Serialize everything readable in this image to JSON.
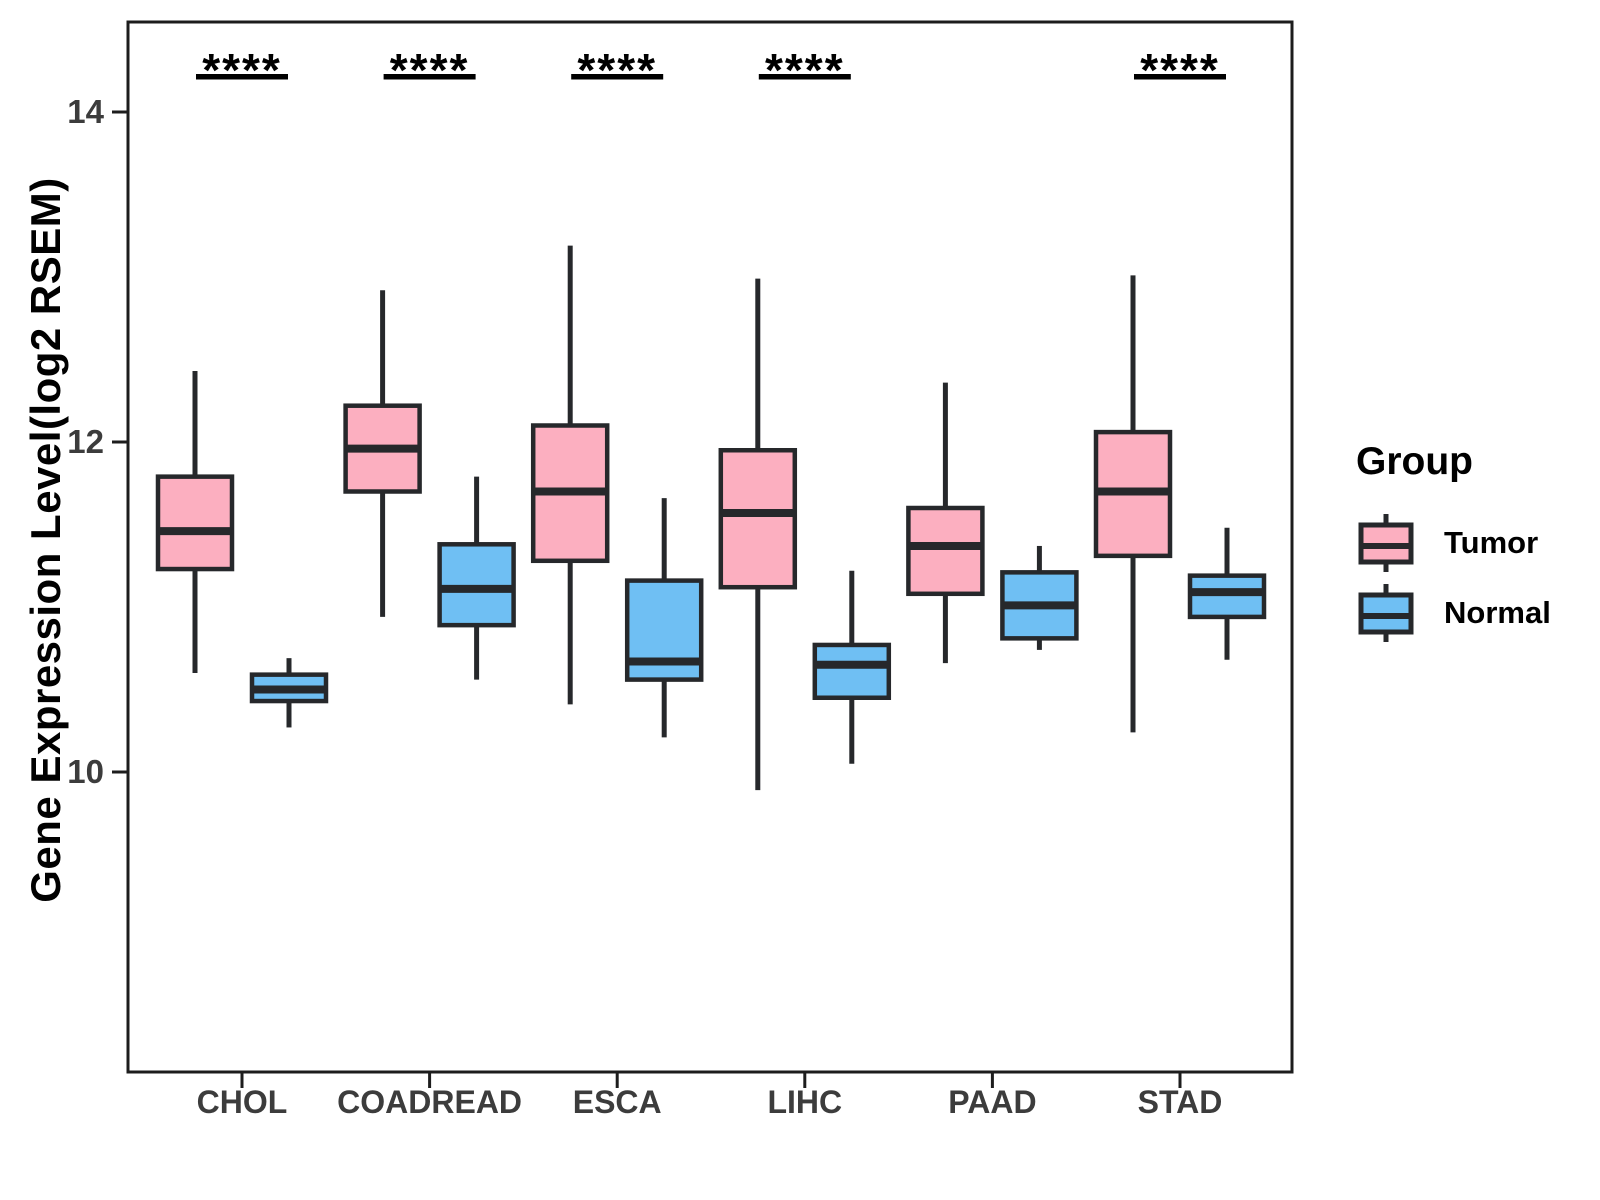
{
  "figure": {
    "y_axis_title": "Gene Expression Level(log2 RSEM)",
    "legend": {
      "title": "Group",
      "items": [
        {
          "label": "Tumor",
          "color": "#FCAFC0"
        },
        {
          "label": "Normal",
          "color": "#6FBFF3"
        }
      ]
    }
  },
  "chart_data": {
    "type": "boxplot",
    "title": "",
    "xlabel": "",
    "ylabel": "Gene Expression Level(log2 RSEM)",
    "categories": [
      "CHOL",
      "COADREAD",
      "ESCA",
      "LIHC",
      "PAAD",
      "STAD"
    ],
    "groups": [
      "Tumor",
      "Normal"
    ],
    "y_ticks": [
      14,
      12,
      10
    ],
    "ylim": [
      8.2,
      14.6
    ],
    "grid": false,
    "legend_position": "right",
    "colors": {
      "Tumor": "#FCAFC0",
      "Normal": "#6FBFF3"
    },
    "box_border_color": "#26282B",
    "significance_marker": "****",
    "significance": [
      {
        "category": "CHOL",
        "label": "****"
      },
      {
        "category": "COADREAD",
        "label": "****"
      },
      {
        "category": "ESCA",
        "label": "****"
      },
      {
        "category": "LIHC",
        "label": "****"
      },
      {
        "category": "STAD",
        "label": "****"
      }
    ],
    "series": [
      {
        "name": "Tumor",
        "color": "#FCAFC0",
        "boxes": [
          {
            "category": "CHOL",
            "whisker_low": 10.6,
            "q1": 11.23,
            "median": 11.46,
            "q3": 11.79,
            "whisker_high": 12.43
          },
          {
            "category": "COADREAD",
            "whisker_low": 10.94,
            "q1": 11.7,
            "median": 11.96,
            "q3": 12.22,
            "whisker_high": 12.92
          },
          {
            "category": "ESCA",
            "whisker_low": 10.41,
            "q1": 11.28,
            "median": 11.7,
            "q3": 12.1,
            "whisker_high": 13.19
          },
          {
            "category": "LIHC",
            "whisker_low": 9.89,
            "q1": 11.12,
            "median": 11.57,
            "q3": 11.95,
            "whisker_high": 12.99
          },
          {
            "category": "PAAD",
            "whisker_low": 10.66,
            "q1": 11.08,
            "median": 11.37,
            "q3": 11.6,
            "whisker_high": 12.36
          },
          {
            "category": "STAD",
            "whisker_low": 10.24,
            "q1": 11.31,
            "median": 11.7,
            "q3": 12.06,
            "whisker_high": 13.01
          }
        ]
      },
      {
        "name": "Normal",
        "color": "#6FBFF3",
        "boxes": [
          {
            "category": "CHOL",
            "whisker_low": 10.27,
            "q1": 10.43,
            "median": 10.5,
            "q3": 10.59,
            "whisker_high": 10.69
          },
          {
            "category": "COADREAD",
            "whisker_low": 10.56,
            "q1": 10.89,
            "median": 11.11,
            "q3": 11.38,
            "whisker_high": 11.79
          },
          {
            "category": "ESCA",
            "whisker_low": 10.21,
            "q1": 10.56,
            "median": 10.67,
            "q3": 11.16,
            "whisker_high": 11.66
          },
          {
            "category": "LIHC",
            "whisker_low": 10.05,
            "q1": 10.45,
            "median": 10.65,
            "q3": 10.77,
            "whisker_high": 11.22
          },
          {
            "category": "PAAD",
            "whisker_low": 10.74,
            "q1": 10.81,
            "median": 11.01,
            "q3": 11.21,
            "whisker_high": 11.37
          },
          {
            "category": "STAD",
            "whisker_low": 10.68,
            "q1": 10.94,
            "median": 11.09,
            "q3": 11.19,
            "whisker_high": 11.48
          }
        ]
      }
    ]
  }
}
